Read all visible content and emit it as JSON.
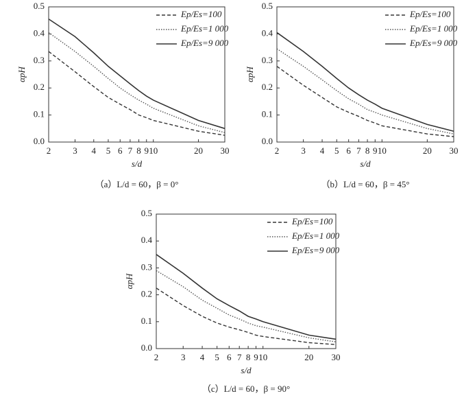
{
  "chart_data": [
    {
      "type": "line",
      "caption": "（a）L/d = 60，β = 0°",
      "xlabel": "s/d",
      "ylabel": "αpH",
      "xscale": "log",
      "grid": false,
      "legend": "upper right",
      "x": [
        2,
        3,
        4,
        5,
        6,
        7,
        8,
        9,
        10,
        20,
        30
      ],
      "xlim": [
        2,
        30
      ],
      "xticks": [
        2,
        3,
        4,
        5,
        6,
        7,
        8,
        9,
        10,
        20,
        30
      ],
      "ylim": [
        0,
        0.5
      ],
      "yticks": [
        {
          "value": 0,
          "label": "0.0"
        },
        0.1,
        0.2,
        0.3,
        0.4,
        0.5
      ],
      "series": [
        {
          "name": "Ep/Es=100",
          "color": "#333333",
          "dash": "dashed",
          "values": [
            0.335,
            0.26,
            0.205,
            0.165,
            0.14,
            0.12,
            0.1,
            0.09,
            0.08,
            0.04,
            0.025
          ]
        },
        {
          "name": "Ep/Es=1 000",
          "color": "#555555",
          "dash": "dotted",
          "values": [
            0.405,
            0.335,
            0.28,
            0.235,
            0.2,
            0.175,
            0.155,
            0.14,
            0.125,
            0.06,
            0.035
          ]
        },
        {
          "name": "Ep/Es=9 000",
          "color": "#333333",
          "dash": "solid",
          "values": [
            0.455,
            0.39,
            0.33,
            0.28,
            0.245,
            0.215,
            0.19,
            0.17,
            0.155,
            0.08,
            0.05
          ]
        }
      ]
    },
    {
      "type": "line",
      "caption": "（b）L/d = 60，β = 45°",
      "xlabel": "s/d",
      "ylabel": "αpH",
      "xscale": "log",
      "grid": false,
      "legend": "upper right",
      "x": [
        2,
        3,
        4,
        5,
        6,
        7,
        8,
        9,
        10,
        20,
        30
      ],
      "xlim": [
        2,
        30
      ],
      "xticks": [
        2,
        3,
        4,
        5,
        6,
        7,
        8,
        9,
        10,
        20,
        30
      ],
      "ylim": [
        0,
        0.5
      ],
      "yticks": [
        {
          "value": 0,
          "label": "0.0"
        },
        0.1,
        0.2,
        0.3,
        0.4,
        0.5
      ],
      "series": [
        {
          "name": "Ep/Es=100",
          "color": "#333333",
          "dash": "dashed",
          "values": [
            0.28,
            0.21,
            0.165,
            0.13,
            0.11,
            0.095,
            0.08,
            0.07,
            0.06,
            0.03,
            0.02
          ]
        },
        {
          "name": "Ep/Es=1 000",
          "color": "#555555",
          "dash": "dotted",
          "values": [
            0.345,
            0.28,
            0.23,
            0.19,
            0.16,
            0.14,
            0.12,
            0.11,
            0.1,
            0.05,
            0.03
          ]
        },
        {
          "name": "Ep/Es=9 000",
          "color": "#333333",
          "dash": "solid",
          "values": [
            0.405,
            0.335,
            0.28,
            0.235,
            0.2,
            0.175,
            0.155,
            0.14,
            0.125,
            0.065,
            0.04
          ]
        }
      ]
    },
    {
      "type": "line",
      "caption": "（c）L/d = 60，β = 90°",
      "xlabel": "s/d",
      "ylabel": "αpH",
      "xscale": "log",
      "grid": false,
      "legend": "upper right",
      "x": [
        2,
        3,
        4,
        5,
        6,
        7,
        8,
        9,
        10,
        20,
        30
      ],
      "xlim": [
        2,
        30
      ],
      "xticks": [
        2,
        3,
        4,
        5,
        6,
        7,
        8,
        9,
        10,
        20,
        30
      ],
      "ylim": [
        0,
        0.5
      ],
      "yticks": [
        {
          "value": 0,
          "label": "0.0"
        },
        0.1,
        0.2,
        0.3,
        0.4,
        0.5
      ],
      "series": [
        {
          "name": "Ep/Es=100",
          "color": "#333333",
          "dash": "dashed",
          "values": [
            0.225,
            0.16,
            0.12,
            0.095,
            0.08,
            0.07,
            0.06,
            0.05,
            0.045,
            0.022,
            0.015
          ]
        },
        {
          "name": "Ep/Es=1 000",
          "color": "#555555",
          "dash": "dotted",
          "values": [
            0.29,
            0.23,
            0.18,
            0.15,
            0.125,
            0.11,
            0.095,
            0.085,
            0.08,
            0.04,
            0.025
          ]
        },
        {
          "name": "Ep/Es=9 000",
          "color": "#333333",
          "dash": "solid",
          "values": [
            0.35,
            0.28,
            0.225,
            0.185,
            0.16,
            0.14,
            0.12,
            0.11,
            0.1,
            0.05,
            0.035
          ]
        }
      ]
    }
  ]
}
